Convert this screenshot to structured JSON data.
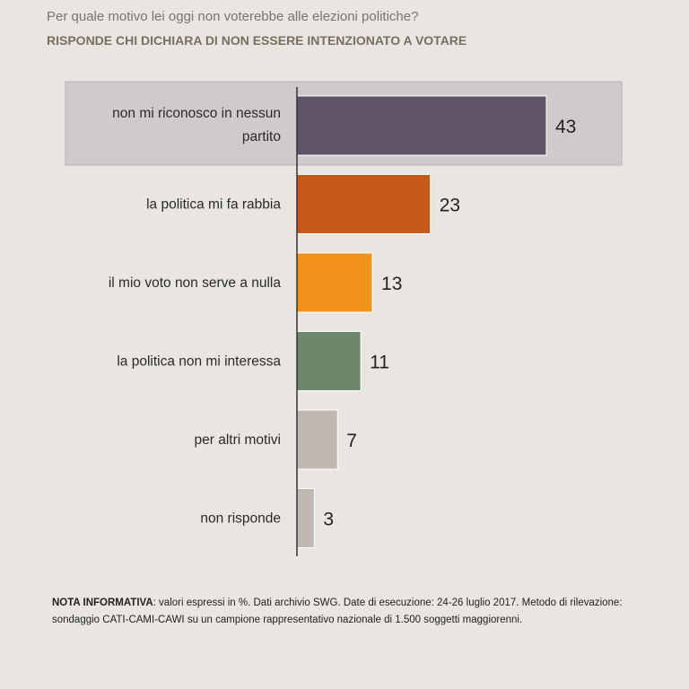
{
  "header": {
    "title": "Per quale motivo lei oggi non voterebbe alle elezioni politiche?",
    "subtitle": "RISPONDE CHI DICHIARA DI NON ESSERE INTENZIONATO A VOTARE"
  },
  "chart_data": {
    "type": "bar",
    "orientation": "horizontal",
    "categories": [
      "non mi riconosco in nessun partito",
      "la politica mi fa rabbia",
      "il mio voto non serve a nulla",
      "la politica non mi interessa",
      "per altri motivi",
      "non risponde"
    ],
    "category_lines": [
      [
        "non mi riconosco in nessun",
        "partito"
      ],
      [
        "la politica mi fa rabbia"
      ],
      [
        "il mio voto non serve a nulla"
      ],
      [
        "la politica non mi interessa"
      ],
      [
        "per altri motivi"
      ],
      [
        "non risponde"
      ]
    ],
    "values": [
      43,
      23,
      13,
      11,
      7,
      3
    ],
    "colors": [
      "#5f5468",
      "#c8571a",
      "#f2921a",
      "#6e876c",
      "#c1b8b1",
      "#c1b8b1"
    ],
    "highlight_color": "#cfcacb",
    "axis_color": "#333333",
    "grid": false,
    "legend": "none",
    "xlim": [
      0,
      50
    ],
    "unit": "%"
  },
  "footer": {
    "note_label": "NOTA INFORMATIVA",
    "note_text": ": valori espressi in %. Dati archivio SWG. Date di esecuzione: 24-26 luglio 2017. Metodo di rilevazione: sondaggio CATI-CAMI-CAWI su un campione rappresentativo nazionale di 1.500 soggetti maggiorenni."
  }
}
